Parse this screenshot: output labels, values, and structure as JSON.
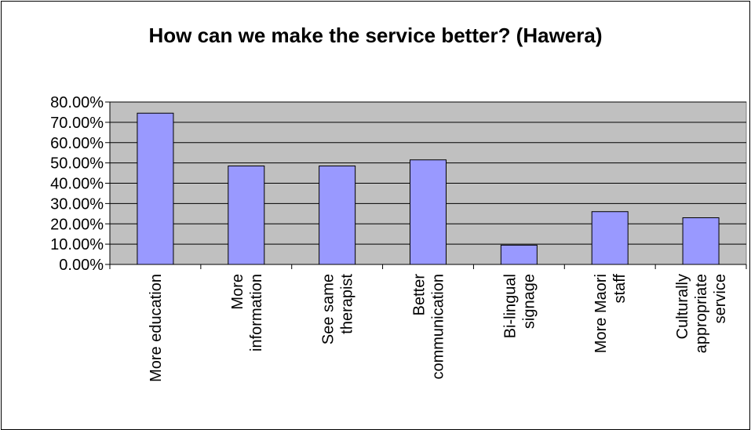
{
  "chart_data": {
    "type": "bar",
    "title": "How can we make the service better? (Hawera)",
    "categories": [
      [
        "More education"
      ],
      [
        "More",
        "information"
      ],
      [
        "See same",
        "therapist"
      ],
      [
        "Better",
        "communication"
      ],
      [
        "Bi-lingual",
        "signage"
      ],
      [
        "More Maori",
        "staff"
      ],
      [
        "Culturally",
        "appropriate",
        "service"
      ]
    ],
    "values": [
      74.5,
      48.5,
      48.5,
      51.5,
      9.5,
      26.0,
      23.0
    ],
    "ylim": [
      0,
      80
    ],
    "yticks": [
      "0.00%",
      "10.00%",
      "20.00%",
      "30.00%",
      "40.00%",
      "50.00%",
      "60.00%",
      "70.00%",
      "80.00%"
    ],
    "ytick_values": [
      0,
      10,
      20,
      30,
      40,
      50,
      60,
      70,
      80
    ],
    "colors": {
      "bar": "#9999FF",
      "plot_bg": "#C0C0C0",
      "grid": "#000000"
    },
    "grid": true,
    "legend": "none"
  }
}
